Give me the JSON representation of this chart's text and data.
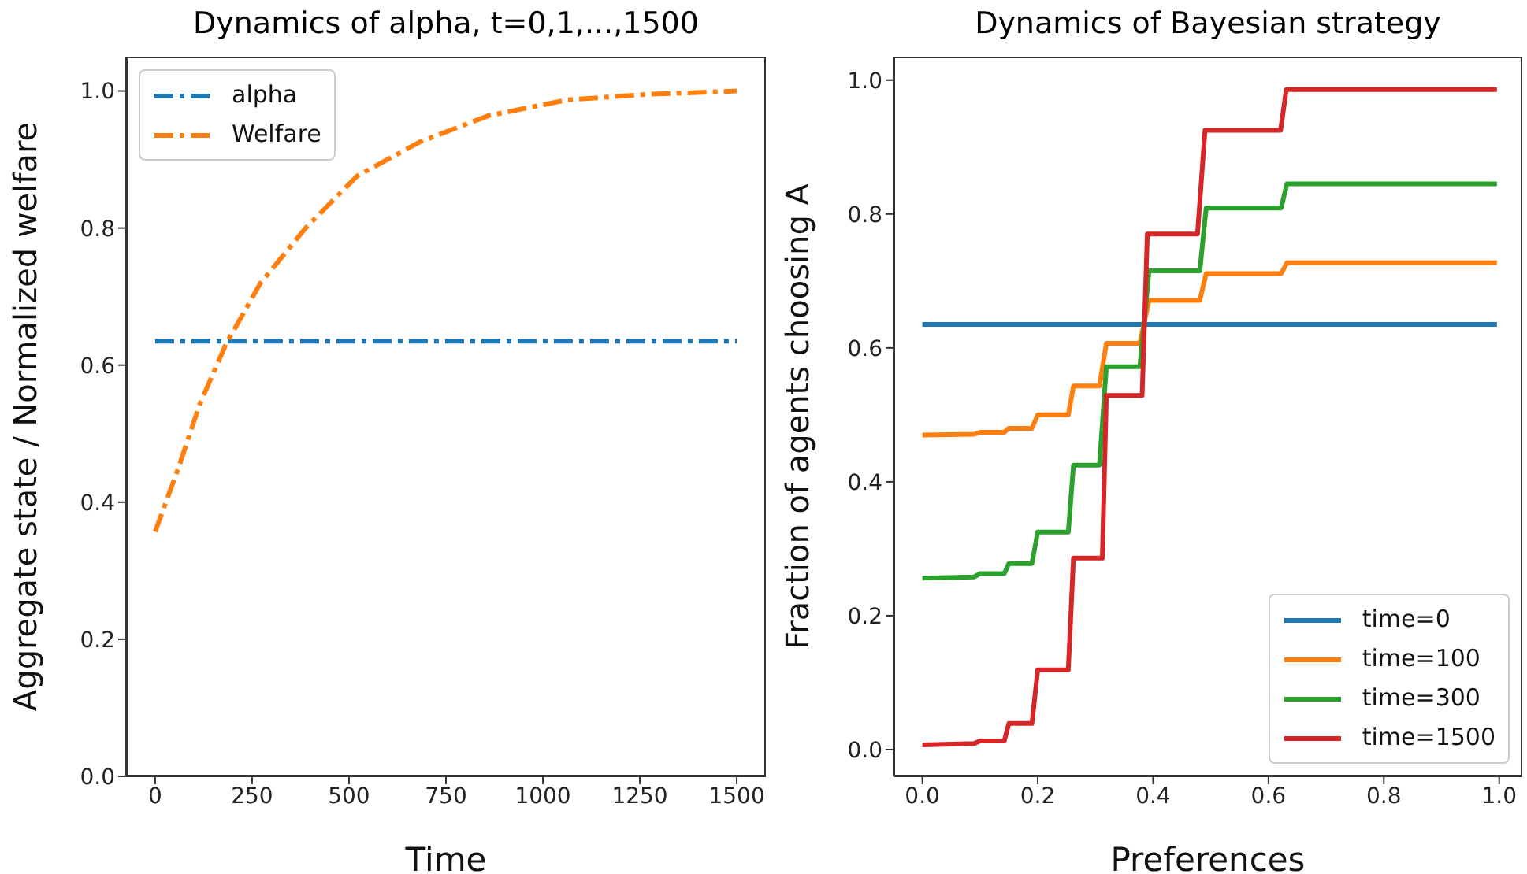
{
  "chart_data": [
    {
      "type": "line",
      "title": "Dynamics of alpha, t=0,1,...,1500",
      "xlabel": "Time",
      "ylabel": "Aggregate state / Normalized welfare",
      "xlim": [
        -75,
        1575
      ],
      "ylim": [
        0,
        1.05
      ],
      "xticks": [
        0,
        250,
        500,
        750,
        1000,
        1250,
        1500
      ],
      "yticks": [
        {
          "value": 0,
          "label": "0.0"
        },
        {
          "value": 0.2,
          "label": "0.2"
        },
        {
          "value": 0.4,
          "label": "0.4"
        },
        {
          "value": 0.6,
          "label": "0.6"
        },
        {
          "value": 0.8,
          "label": "0.8"
        },
        {
          "value": 1,
          "label": "1.0"
        }
      ],
      "legend": "top left",
      "line_style": "dashed",
      "series": [
        {
          "name": "alpha",
          "color": "#1f77b4",
          "x": [
            0,
            1500
          ],
          "values": [
            0.635,
            0.635
          ]
        },
        {
          "name": "Welfare",
          "color": "#ff7f0e",
          "x": [
            0,
            60,
            115,
            183,
            271,
            388,
            521,
            684,
            860,
            1063,
            1266,
            1500
          ],
          "values": [
            0.357,
            0.45,
            0.543,
            0.631,
            0.719,
            0.8,
            0.876,
            0.926,
            0.964,
            0.987,
            0.995,
            1.0
          ]
        }
      ]
    },
    {
      "type": "line",
      "title": "Dynamics of Bayesian strategy",
      "xlabel": "Preferences",
      "ylabel": "Fraction of agents choosing A",
      "xlim": [
        -0.05,
        1.04
      ],
      "ylim": [
        -0.04,
        1.035
      ],
      "xticks": [
        {
          "value": 0,
          "label": "0.0"
        },
        {
          "value": 0.2,
          "label": "0.2"
        },
        {
          "value": 0.4,
          "label": "0.4"
        },
        {
          "value": 0.6,
          "label": "0.6"
        },
        {
          "value": 0.8,
          "label": "0.8"
        },
        {
          "value": 1,
          "label": "1.0"
        }
      ],
      "yticks": [
        {
          "value": 0,
          "label": "0.0"
        },
        {
          "value": 0.2,
          "label": "0.2"
        },
        {
          "value": 0.4,
          "label": "0.4"
        },
        {
          "value": 0.6,
          "label": "0.6"
        },
        {
          "value": 0.8,
          "label": "0.8"
        },
        {
          "value": 1,
          "label": "1.0"
        }
      ],
      "legend": "bottom right",
      "series": [
        {
          "name": "time=0",
          "color": "#1f77b4",
          "x": [
            0,
            0.996
          ],
          "values": [
            0.635,
            0.635
          ]
        },
        {
          "name": "time=100",
          "color": "#ff7f0e",
          "x": [
            0,
            0.09,
            0.1,
            0.142,
            0.15,
            0.19,
            0.2,
            0.253,
            0.262,
            0.307,
            0.319,
            0.377,
            0.393,
            0.481,
            0.492,
            0.622,
            0.632,
            0.996
          ],
          "values": [
            0.47,
            0.471,
            0.474,
            0.474,
            0.48,
            0.48,
            0.5,
            0.5,
            0.543,
            0.543,
            0.607,
            0.607,
            0.671,
            0.671,
            0.711,
            0.711,
            0.727,
            0.727
          ]
        },
        {
          "name": "time=300",
          "color": "#2ca02c",
          "x": [
            0,
            0.09,
            0.1,
            0.142,
            0.15,
            0.19,
            0.2,
            0.253,
            0.262,
            0.307,
            0.319,
            0.377,
            0.393,
            0.481,
            0.492,
            0.622,
            0.632,
            0.996
          ],
          "values": [
            0.256,
            0.258,
            0.263,
            0.263,
            0.278,
            0.278,
            0.325,
            0.325,
            0.425,
            0.425,
            0.572,
            0.572,
            0.715,
            0.715,
            0.809,
            0.809,
            0.845,
            0.845
          ]
        },
        {
          "name": "time=1500",
          "color": "#d62728",
          "x": [
            0,
            0.09,
            0.1,
            0.142,
            0.15,
            0.19,
            0.2,
            0.253,
            0.262,
            0.312,
            0.319,
            0.381,
            0.39,
            0.477,
            0.49,
            0.621,
            0.631,
            0.996
          ],
          "values": [
            0.007,
            0.009,
            0.013,
            0.013,
            0.039,
            0.039,
            0.119,
            0.119,
            0.286,
            0.286,
            0.529,
            0.529,
            0.77,
            0.77,
            0.925,
            0.925,
            0.986,
            0.986
          ]
        }
      ]
    }
  ]
}
